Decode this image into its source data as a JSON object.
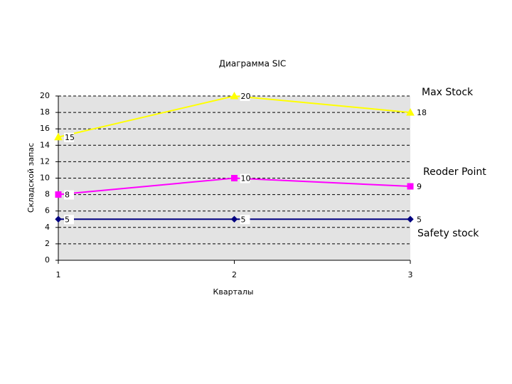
{
  "chart_data": {
    "type": "line",
    "title": "Диаграмма SIC",
    "x_label": "Кварталы",
    "y_label": "Складской запас",
    "x": [
      1,
      2,
      3
    ],
    "series": [
      {
        "name": "Max Stock",
        "color": "#ffff00",
        "marker": "triangle",
        "values": [
          15,
          20,
          18
        ]
      },
      {
        "name": "Reoder Point",
        "color": "#ff00ff",
        "marker": "square",
        "values": [
          8,
          10,
          9
        ]
      },
      {
        "name": "Safety stock",
        "color": "#000080",
        "marker": "diamond",
        "values": [
          5,
          5,
          5
        ]
      }
    ],
    "xlim": [
      1,
      3
    ],
    "xticks": [
      1,
      2,
      3
    ],
    "ylim": [
      0,
      20
    ],
    "yticks": [
      0,
      2,
      4,
      6,
      8,
      10,
      12,
      14,
      16,
      18,
      20
    ],
    "grid": true
  }
}
